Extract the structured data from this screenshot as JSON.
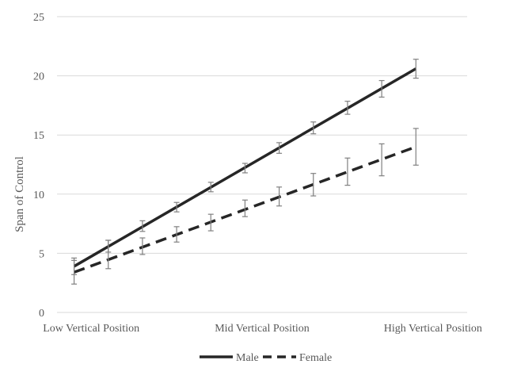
{
  "chart_data": {
    "type": "line",
    "title": "",
    "xlabel": "",
    "ylabel": "Span of Control",
    "ylim": [
      0,
      25
    ],
    "yticks": [
      0,
      5,
      10,
      15,
      20,
      25
    ],
    "grid": true,
    "legend_position": "bottom",
    "x_tick_labels": [
      {
        "label": "Low Vertical Position",
        "x": 1
      },
      {
        "label": "Mid Vertical Position",
        "x": 6
      },
      {
        "label": "High Vertical Position",
        "x": 11
      }
    ],
    "x": [
      0.5,
      1.5,
      2.5,
      3.5,
      4.5,
      5.5,
      6.5,
      7.5,
      8.5,
      9.5,
      10.5
    ],
    "xlim": [
      0,
      12
    ],
    "series": [
      {
        "name": "Male",
        "style": "solid",
        "color": "#262626",
        "values": [
          3.9,
          5.6,
          7.3,
          8.9,
          10.6,
          12.2,
          13.9,
          15.6,
          17.3,
          18.9,
          20.6
        ],
        "error": [
          0.7,
          0.5,
          0.45,
          0.4,
          0.4,
          0.4,
          0.45,
          0.5,
          0.55,
          0.7,
          0.8
        ]
      },
      {
        "name": "Female",
        "style": "dashed",
        "color": "#262626",
        "values": [
          3.4,
          4.9,
          5.6,
          6.6,
          7.6,
          8.8,
          9.8,
          10.8,
          11.9,
          12.9,
          14.0
        ],
        "error": [
          1.0,
          1.2,
          0.7,
          0.65,
          0.7,
          0.7,
          0.8,
          0.95,
          1.15,
          1.35,
          1.55
        ]
      }
    ]
  }
}
